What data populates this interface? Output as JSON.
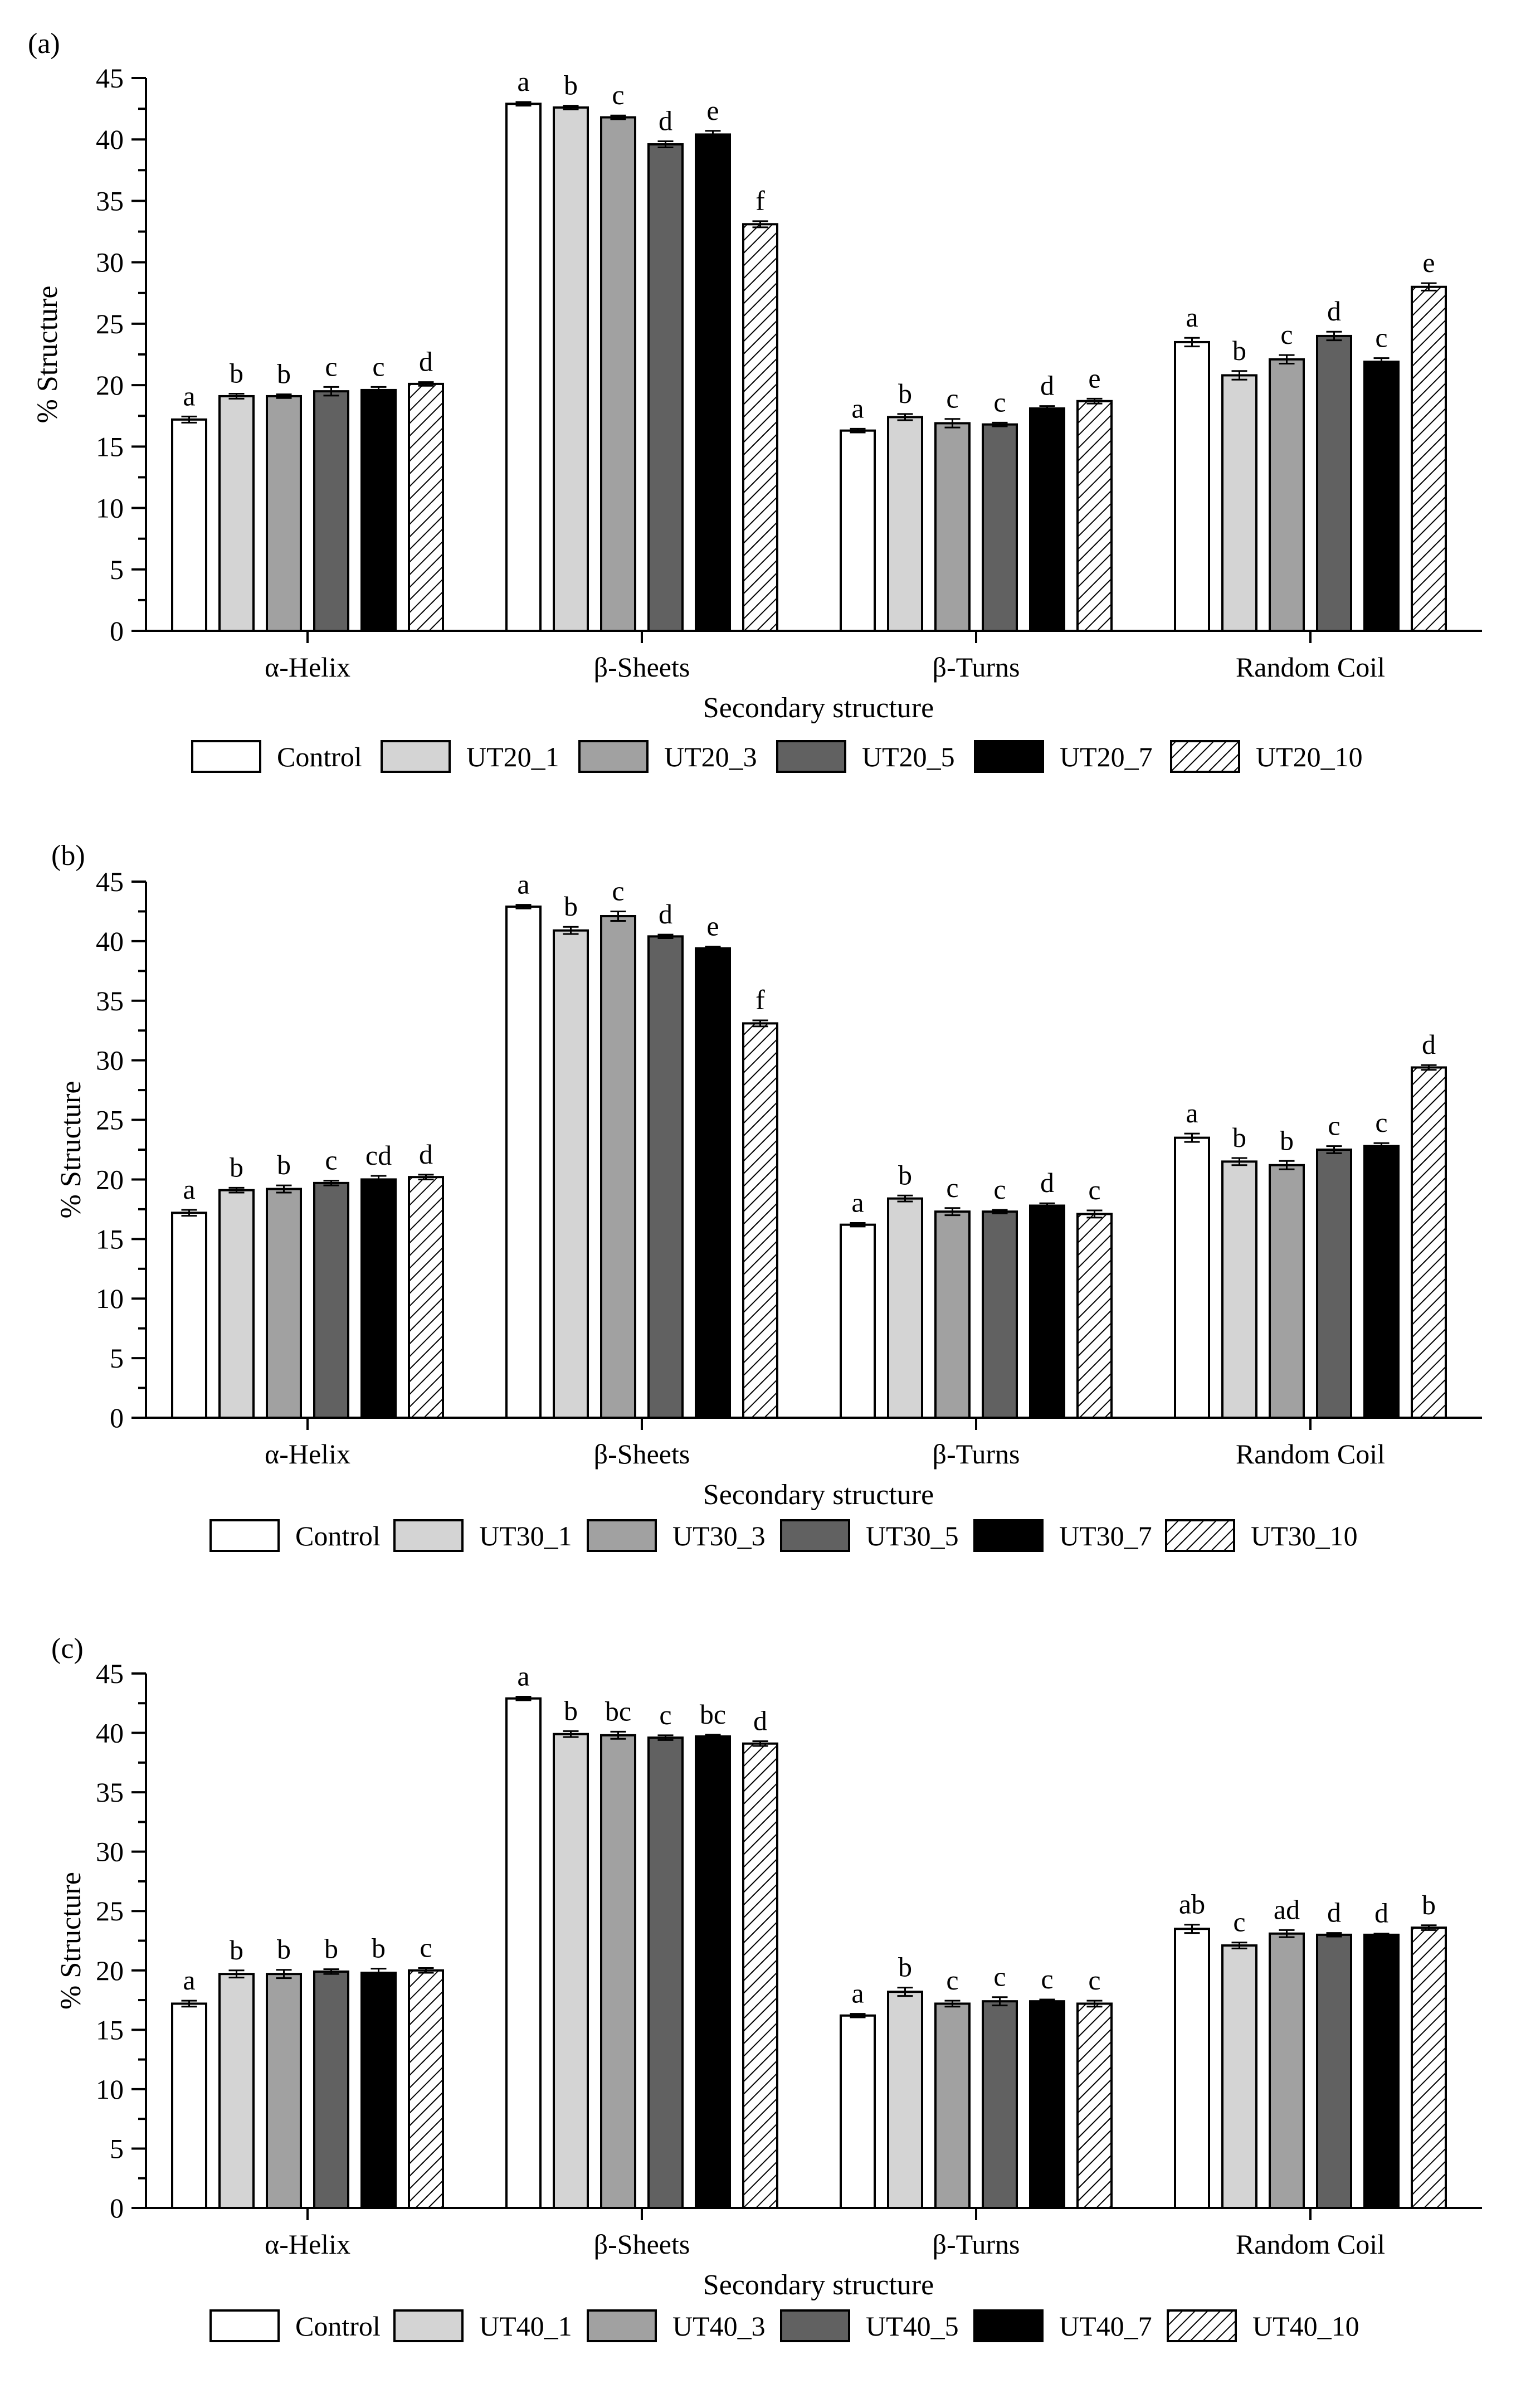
{
  "chart_data": [
    {
      "panel_label": "(a)",
      "type": "bar",
      "xlabel": "Secondary structure",
      "ylabel": "% Structure",
      "ylim": [
        0,
        45
      ],
      "yticks": [
        "0",
        "5",
        "10",
        "15",
        "20",
        "25",
        "30",
        "35",
        "40",
        "45"
      ],
      "categories": [
        "α-Helix",
        "β-Sheets",
        "β-Turns",
        "Random Coil"
      ],
      "series": [
        {
          "name": "Control",
          "style": "white",
          "values": [
            17.2,
            42.9,
            16.3,
            23.5
          ],
          "errors": [
            0.25,
            0.15,
            0.15,
            0.35
          ],
          "letters": [
            "a",
            "a",
            "a",
            "a"
          ]
        },
        {
          "name": "UT20_1",
          "style": "lightgray",
          "values": [
            19.1,
            42.6,
            17.4,
            20.8
          ],
          "errors": [
            0.2,
            0.15,
            0.25,
            0.35
          ],
          "letters": [
            "b",
            "b",
            "b",
            "b"
          ]
        },
        {
          "name": "UT20_3",
          "style": "midgray",
          "values": [
            19.1,
            41.8,
            16.9,
            22.1
          ],
          "errors": [
            0.15,
            0.15,
            0.35,
            0.35
          ],
          "letters": [
            "b",
            "c",
            "c",
            "c"
          ]
        },
        {
          "name": "UT20_5",
          "style": "darkgray",
          "values": [
            19.5,
            39.6,
            16.8,
            24.0
          ],
          "errors": [
            0.35,
            0.25,
            0.15,
            0.35
          ],
          "letters": [
            "c",
            "d",
            "c",
            "d"
          ]
        },
        {
          "name": "UT20_7",
          "style": "black",
          "values": [
            19.6,
            40.4,
            18.1,
            21.9
          ],
          "errors": [
            0.25,
            0.3,
            0.2,
            0.3
          ],
          "letters": [
            "c",
            "e",
            "d",
            "c"
          ]
        },
        {
          "name": "UT20_10",
          "style": "hatched",
          "values": [
            20.1,
            33.1,
            18.7,
            28.0
          ],
          "errors": [
            0.15,
            0.25,
            0.2,
            0.3
          ],
          "letters": [
            "d",
            "f",
            "e",
            "e"
          ]
        }
      ]
    },
    {
      "panel_label": "(b)",
      "type": "bar",
      "xlabel": "Secondary structure",
      "ylabel": "% Structure",
      "ylim": [
        0,
        45
      ],
      "yticks": [
        "0",
        "5",
        "10",
        "15",
        "20",
        "25",
        "30",
        "35",
        "40",
        "45"
      ],
      "categories": [
        "α-Helix",
        "β-Sheets",
        "β-Turns",
        "Random Coil"
      ],
      "series": [
        {
          "name": "Control",
          "style": "white",
          "values": [
            17.2,
            42.9,
            16.2,
            23.5
          ],
          "errors": [
            0.25,
            0.15,
            0.15,
            0.35
          ],
          "letters": [
            "a",
            "a",
            "a",
            "a"
          ]
        },
        {
          "name": "UT30_1",
          "style": "lightgray",
          "values": [
            19.1,
            40.9,
            18.4,
            21.5
          ],
          "errors": [
            0.2,
            0.3,
            0.25,
            0.3
          ],
          "letters": [
            "b",
            "b",
            "b",
            "b"
          ]
        },
        {
          "name": "UT30_3",
          "style": "midgray",
          "values": [
            19.2,
            42.1,
            17.3,
            21.2
          ],
          "errors": [
            0.3,
            0.4,
            0.3,
            0.35
          ],
          "letters": [
            "b",
            "c",
            "c",
            "b"
          ]
        },
        {
          "name": "UT30_5",
          "style": "darkgray",
          "values": [
            19.7,
            40.4,
            17.3,
            22.5
          ],
          "errors": [
            0.2,
            0.15,
            0.15,
            0.3
          ],
          "letters": [
            "c",
            "d",
            "c",
            "c"
          ]
        },
        {
          "name": "UT30_7",
          "style": "black",
          "values": [
            20.0,
            39.4,
            17.8,
            22.8
          ],
          "errors": [
            0.3,
            0.15,
            0.2,
            0.25
          ],
          "letters": [
            "cd",
            "e",
            "d",
            "c"
          ]
        },
        {
          "name": "UT30_10",
          "style": "hatched",
          "values": [
            20.2,
            33.1,
            17.1,
            29.4
          ],
          "errors": [
            0.2,
            0.25,
            0.3,
            0.2
          ],
          "letters": [
            "d",
            "f",
            "c",
            "d"
          ]
        }
      ]
    },
    {
      "panel_label": "(c)",
      "type": "bar",
      "xlabel": "Secondary structure",
      "ylabel": "% Structure",
      "ylim": [
        0,
        45
      ],
      "yticks": [
        "0",
        "5",
        "10",
        "15",
        "20",
        "25",
        "30",
        "35",
        "40",
        "45"
      ],
      "categories": [
        "α-Helix",
        "β-Sheets",
        "β-Turns",
        "Random Coil"
      ],
      "series": [
        {
          "name": "Control",
          "style": "white",
          "values": [
            17.2,
            42.9,
            16.2,
            23.5
          ],
          "errors": [
            0.25,
            0.15,
            0.15,
            0.35
          ],
          "letters": [
            "a",
            "a",
            "a",
            "ab"
          ]
        },
        {
          "name": "UT40_1",
          "style": "lightgray",
          "values": [
            19.7,
            39.9,
            18.2,
            22.1
          ],
          "errors": [
            0.3,
            0.25,
            0.35,
            0.25
          ],
          "letters": [
            "b",
            "b",
            "b",
            "c"
          ]
        },
        {
          "name": "UT40_3",
          "style": "midgray",
          "values": [
            19.7,
            39.8,
            17.2,
            23.1
          ],
          "errors": [
            0.35,
            0.3,
            0.25,
            0.3
          ],
          "letters": [
            "b",
            "bc",
            "c",
            "ad"
          ]
        },
        {
          "name": "UT40_5",
          "style": "darkgray",
          "values": [
            19.9,
            39.6,
            17.4,
            23.0
          ],
          "errors": [
            0.2,
            0.2,
            0.35,
            0.15
          ],
          "letters": [
            "b",
            "c",
            "c",
            "d"
          ]
        },
        {
          "name": "UT40_7",
          "style": "black",
          "values": [
            19.8,
            39.7,
            17.4,
            23.0
          ],
          "errors": [
            0.35,
            0.15,
            0.15,
            0.1
          ],
          "letters": [
            "b",
            "bc",
            "c",
            "d"
          ]
        },
        {
          "name": "UT40_10",
          "style": "hatched",
          "values": [
            20.0,
            39.1,
            17.2,
            23.6
          ],
          "errors": [
            0.2,
            0.2,
            0.25,
            0.2
          ],
          "letters": [
            "c",
            "d",
            "c",
            "b"
          ]
        }
      ]
    }
  ],
  "colors": {
    "white": "#ffffff",
    "lightgray": "#d4d4d4",
    "midgray": "#a1a1a1",
    "darkgray": "#616161",
    "black": "#000000",
    "axis": "#000000"
  }
}
